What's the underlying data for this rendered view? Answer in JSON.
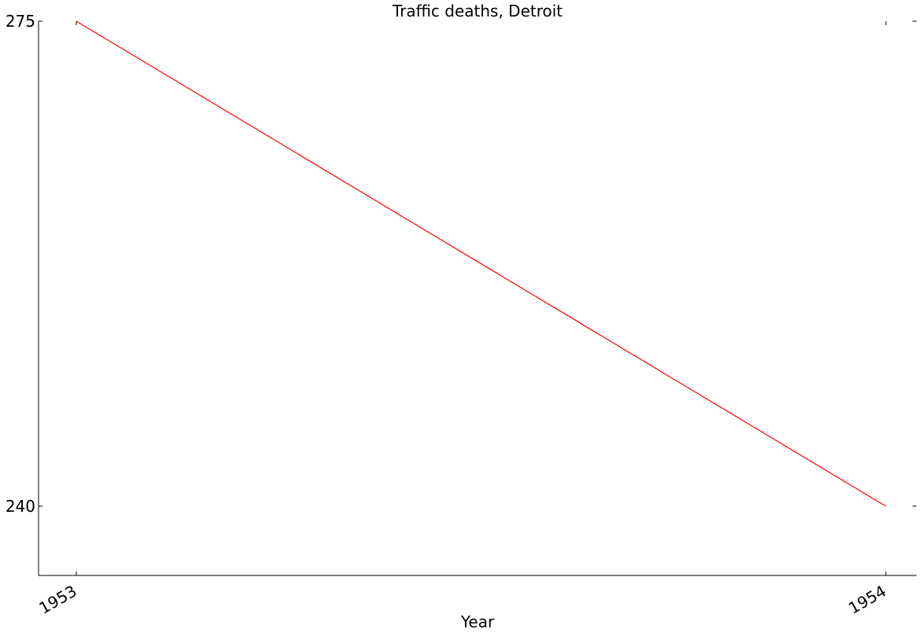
{
  "chart_data": {
    "type": "line",
    "title": "Traffic deaths, Detroit",
    "xlabel": "Year",
    "ylabel": "",
    "x": [
      1953,
      1954
    ],
    "xticks": [
      "1953",
      "1954"
    ],
    "yticks": [
      "240",
      "275"
    ],
    "ylim": [
      235,
      275
    ],
    "series": [
      {
        "values": [
          275,
          240
        ],
        "color": "#ff0000"
      }
    ],
    "grid": false,
    "legend": "none"
  }
}
